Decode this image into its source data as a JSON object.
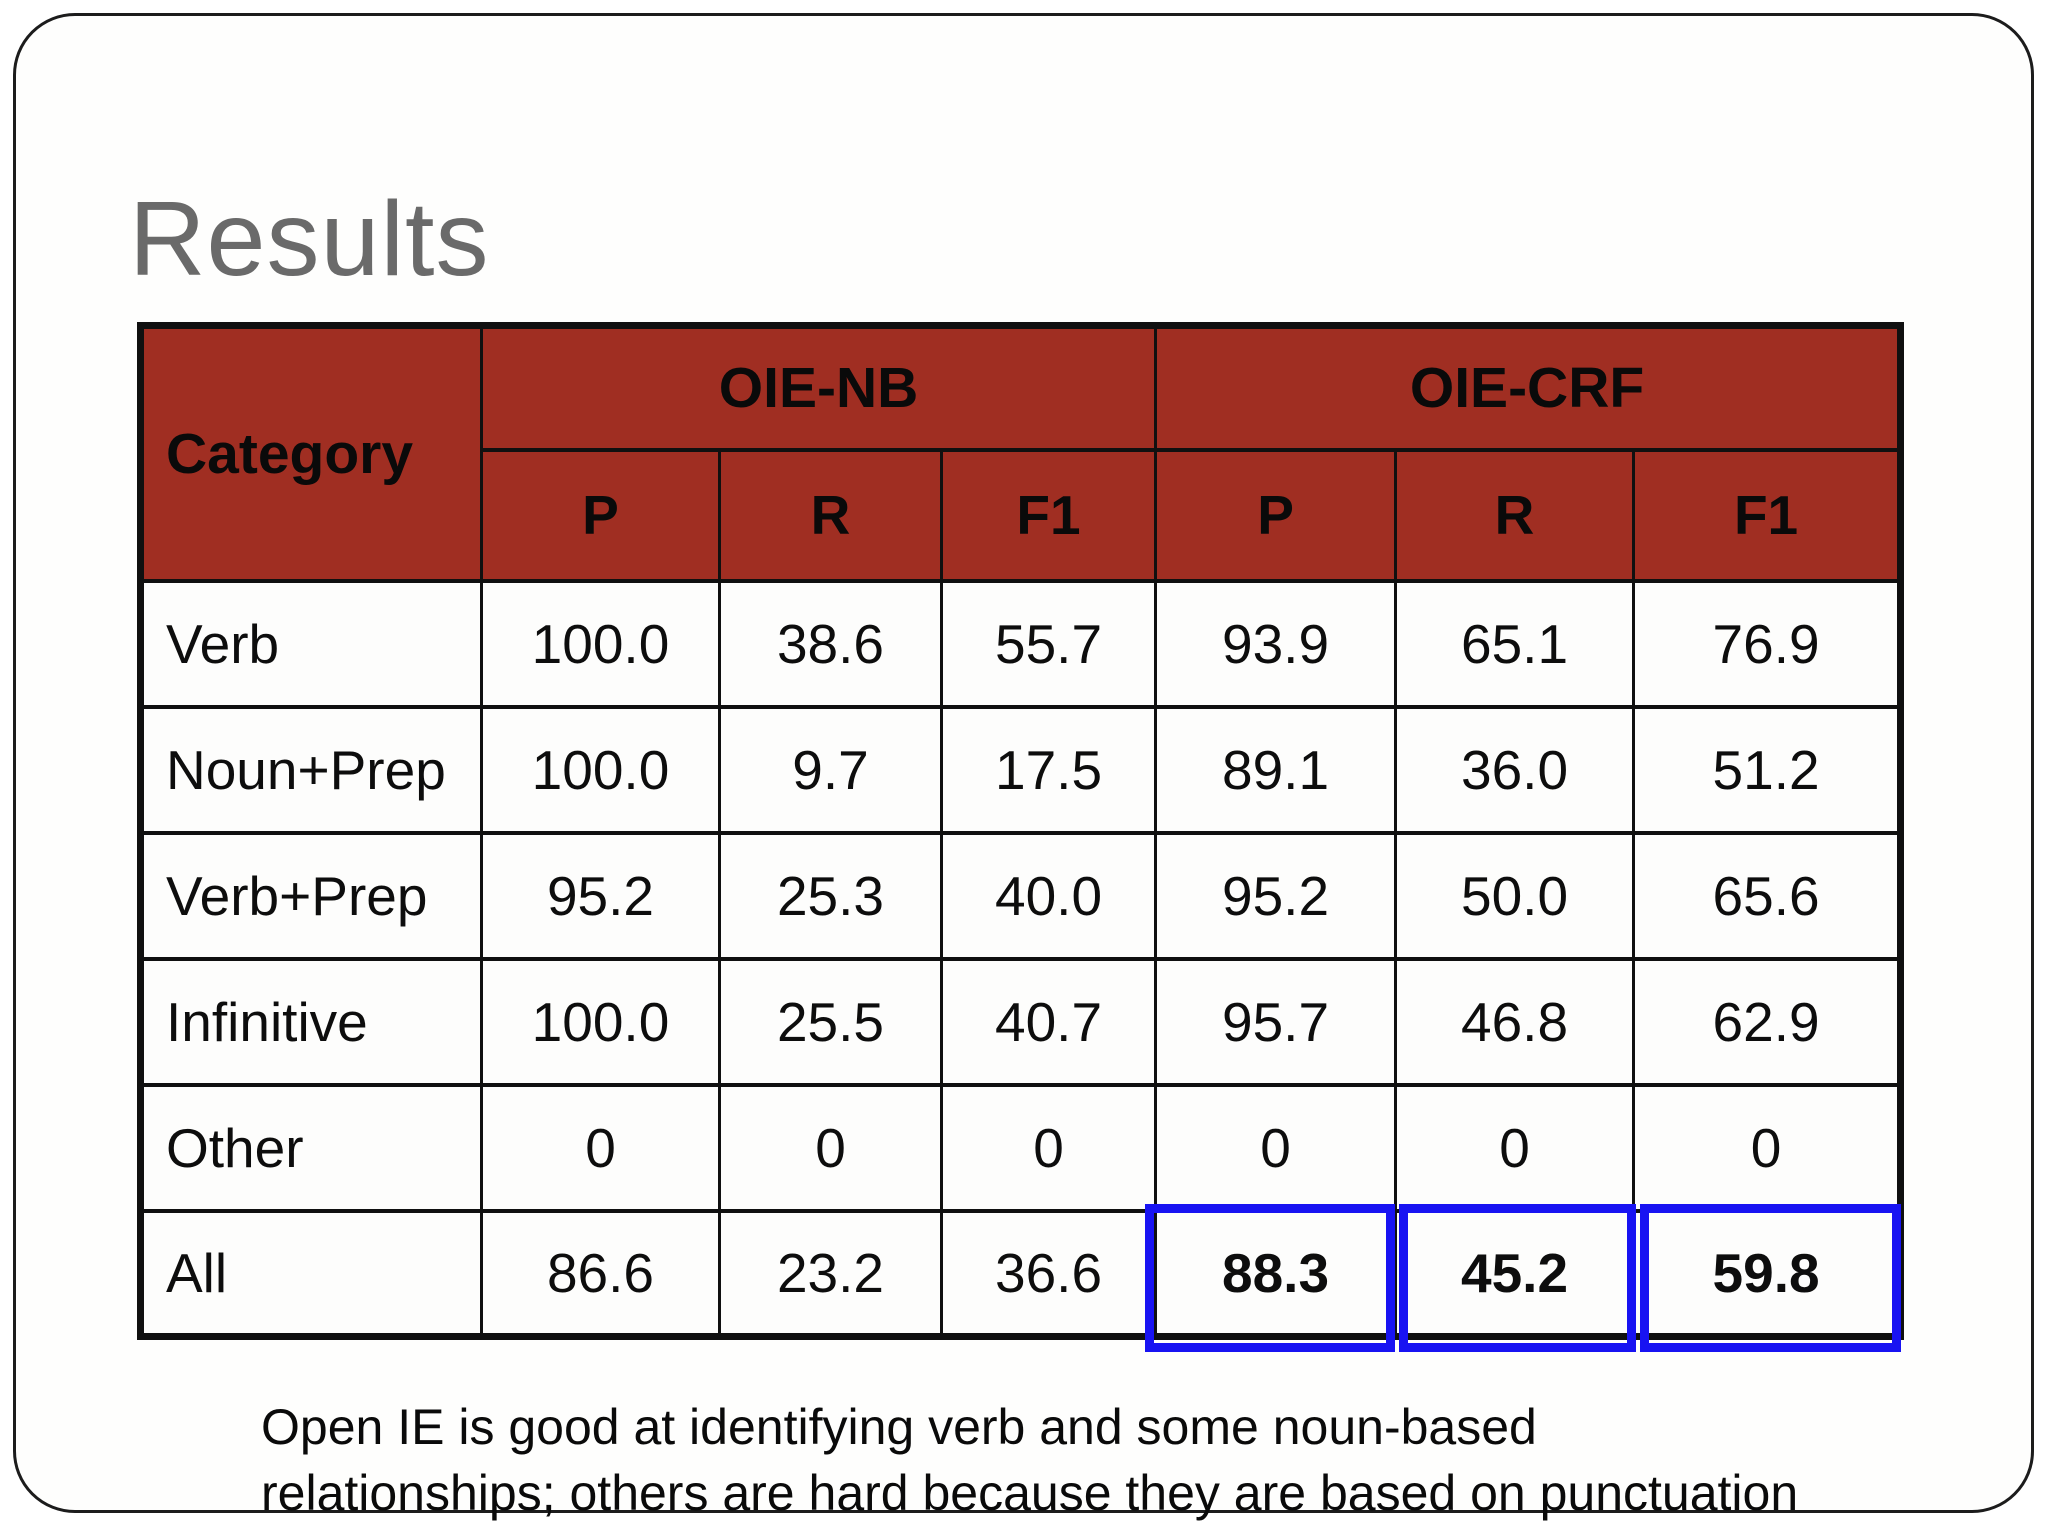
{
  "title": "Results",
  "table": {
    "corner": "Category",
    "group1": "OIE-NB",
    "group2": "OIE-CRF",
    "subheaders": [
      "P",
      "R",
      "F1",
      "P",
      "R",
      "F1"
    ],
    "rows": [
      {
        "category": "Verb",
        "values": [
          "100.0",
          "38.6",
          "55.7",
          "93.9",
          "65.1",
          "76.9"
        ]
      },
      {
        "category": "Noun+Prep",
        "values": [
          "100.0",
          "9.7",
          "17.5",
          "89.1",
          "36.0",
          "51.2"
        ]
      },
      {
        "category": "Verb+Prep",
        "values": [
          "95.2",
          "25.3",
          "40.0",
          "95.2",
          "50.0",
          "65.6"
        ]
      },
      {
        "category": "Infinitive",
        "values": [
          "100.0",
          "25.5",
          "40.7",
          "95.7",
          "46.8",
          "62.9"
        ]
      },
      {
        "category": "Other",
        "values": [
          "0",
          "0",
          "0",
          "0",
          "0",
          "0"
        ]
      },
      {
        "category": "All",
        "values": [
          "86.6",
          "23.2",
          "36.6",
          "88.3",
          "45.2",
          "59.8"
        ],
        "bold_values": [
          3,
          4,
          5
        ],
        "highlighted_values": [
          3,
          4,
          5
        ]
      }
    ]
  },
  "note": {
    "line1": "Open IE is good at identifying verb and some noun-based",
    "line2": "relationships; others are hard because they are based on punctuation"
  },
  "colors": {
    "header_bg": "#A02E22",
    "table_border": "#101010",
    "title_text": "#6A6A6A",
    "highlight_border": "#1813F2"
  }
}
